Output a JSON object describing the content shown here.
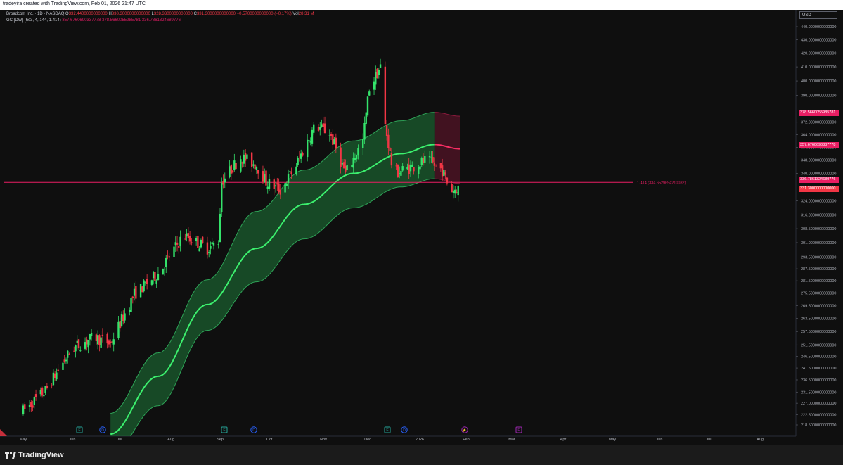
{
  "header": {
    "attribution": "tradeyira created with TradingView.com, Feb 01, 2026 21:47 UTC"
  },
  "legend": {
    "symbol": "Broadcom Inc. · 1D · NASDAQ",
    "open_label": "O",
    "open": "332.4400000000000",
    "high_label": "H",
    "high": "338.3000000000000",
    "low_label": "L",
    "low": "328.3300000000000",
    "close_label": "C",
    "close": "331.3000000000000",
    "change": "−0.5700000000000 (−0.17%)",
    "vol_label": "Vol",
    "vol": "28.31 M",
    "indicator": "GC [DW] (hc3, 4, 144, 1.414)",
    "ind_v1": "357.6760690337778",
    "ind_v2": "378.5660055985781",
    "ind_v3": "336.7861324689776"
  },
  "currency": "USD",
  "branding": {
    "name": "TradingView"
  },
  "price_tags": {
    "upper": "378.5660055985781",
    "mid": "357.6760690337778",
    "lower": "336.7861324689776",
    "last": "331.3000000000000"
  },
  "hline_label": "1.414 (334.6529694210082)",
  "colors": {
    "background": "#0f0f0f",
    "up": "#34e36b",
    "down": "#f23645",
    "band_mid": "#3cf06e",
    "band_mid_proj": "#f72e63",
    "band_fill": "#1f7a3a",
    "band_fill_proj": "#6b1530",
    "hline": "#e91e63"
  },
  "chart_data": {
    "type": "candlestick",
    "title": "Broadcom Inc. · 1D · NASDAQ",
    "x_axis_labels": [
      "May",
      "Jun",
      "Jul",
      "Aug",
      "Sep",
      "Oct",
      "Nov",
      "Dec",
      "2026",
      "Feb",
      "Mar",
      "Apr",
      "May",
      "Jun",
      "Jul",
      "Aug"
    ],
    "y_axis_ticks": [
      "440.0000000000000",
      "430.0000000000000",
      "420.0000000000000",
      "410.0000000000000",
      "400.0000000000000",
      "390.0000000000000",
      "372.0000000000000",
      "364.0000000000000",
      "356.0000000000000",
      "348.0000000000000",
      "340.0000000000000",
      "324.0000000000000",
      "316.0000000000000",
      "308.5000000000000",
      "301.0000000000000",
      "293.5000000000000",
      "287.5000000000000",
      "281.5000000000000",
      "275.5000000000000",
      "269.5000000000000",
      "263.5000000000000",
      "257.5000000000000",
      "251.5000000000000",
      "246.5000000000000",
      "241.5000000000000",
      "236.5000000000000",
      "231.5000000000000",
      "227.0000000000000",
      "222.5000000000000",
      "218.5000000000000"
    ],
    "y_scale": "log",
    "ylim": [
      216,
      448
    ],
    "price_path": [
      [
        "2025-05-01",
        224
      ],
      [
        "2025-05-15",
        232
      ],
      [
        "2025-06-01",
        250
      ],
      [
        "2025-06-15",
        255
      ],
      [
        "2025-06-25",
        252
      ],
      [
        "2025-07-10",
        275
      ],
      [
        "2025-07-25",
        285
      ],
      [
        "2025-08-10",
        305
      ],
      [
        "2025-08-25",
        298
      ],
      [
        "2025-09-01",
        302
      ],
      [
        "2025-09-03",
        335
      ],
      [
        "2025-09-15",
        350
      ],
      [
        "2025-09-25",
        345
      ],
      [
        "2025-10-01",
        335
      ],
      [
        "2025-10-10",
        330
      ],
      [
        "2025-10-20",
        345
      ],
      [
        "2025-11-01",
        370
      ],
      [
        "2025-11-10",
        365
      ],
      [
        "2025-11-20",
        340
      ],
      [
        "2025-12-01",
        360
      ],
      [
        "2025-12-05",
        395
      ],
      [
        "2025-12-12",
        410
      ],
      [
        "2025-12-15",
        370
      ],
      [
        "2025-12-20",
        340
      ],
      [
        "2026-01-01",
        344
      ],
      [
        "2026-01-10",
        348
      ],
      [
        "2026-01-20",
        342
      ],
      [
        "2026-01-25",
        330
      ],
      [
        "2026-01-30",
        331.3
      ]
    ],
    "gaussian_channel": {
      "mid": [
        [
          "2025-06-25",
          215
        ],
        [
          "2025-07-25",
          238
        ],
        [
          "2025-08-25",
          270
        ],
        [
          "2025-09-25",
          298
        ],
        [
          "2025-10-25",
          322
        ],
        [
          "2025-11-25",
          340
        ],
        [
          "2025-12-25",
          352
        ],
        [
          "2026-01-15",
          357.68
        ],
        [
          "2026-01-31",
          355
        ]
      ],
      "upper": [
        [
          "2025-06-25",
          223
        ],
        [
          "2025-07-25",
          248
        ],
        [
          "2025-08-25",
          282
        ],
        [
          "2025-09-25",
          318
        ],
        [
          "2025-10-25",
          342
        ],
        [
          "2025-11-25",
          360
        ],
        [
          "2025-12-25",
          373
        ],
        [
          "2026-01-15",
          378.57
        ],
        [
          "2026-01-31",
          376
        ]
      ],
      "lower": [
        [
          "2025-06-25",
          207
        ],
        [
          "2025-07-25",
          226
        ],
        [
          "2025-08-25",
          258
        ],
        [
          "2025-09-25",
          281
        ],
        [
          "2025-10-25",
          303
        ],
        [
          "2025-11-25",
          320
        ],
        [
          "2025-12-25",
          332
        ],
        [
          "2026-01-15",
          336.79
        ],
        [
          "2026-01-31",
          334
        ]
      ]
    },
    "horizontal_line": {
      "value": 334.6529694210082,
      "label": "1.414 (334.6529694210082)"
    },
    "last_close": 331.3
  }
}
